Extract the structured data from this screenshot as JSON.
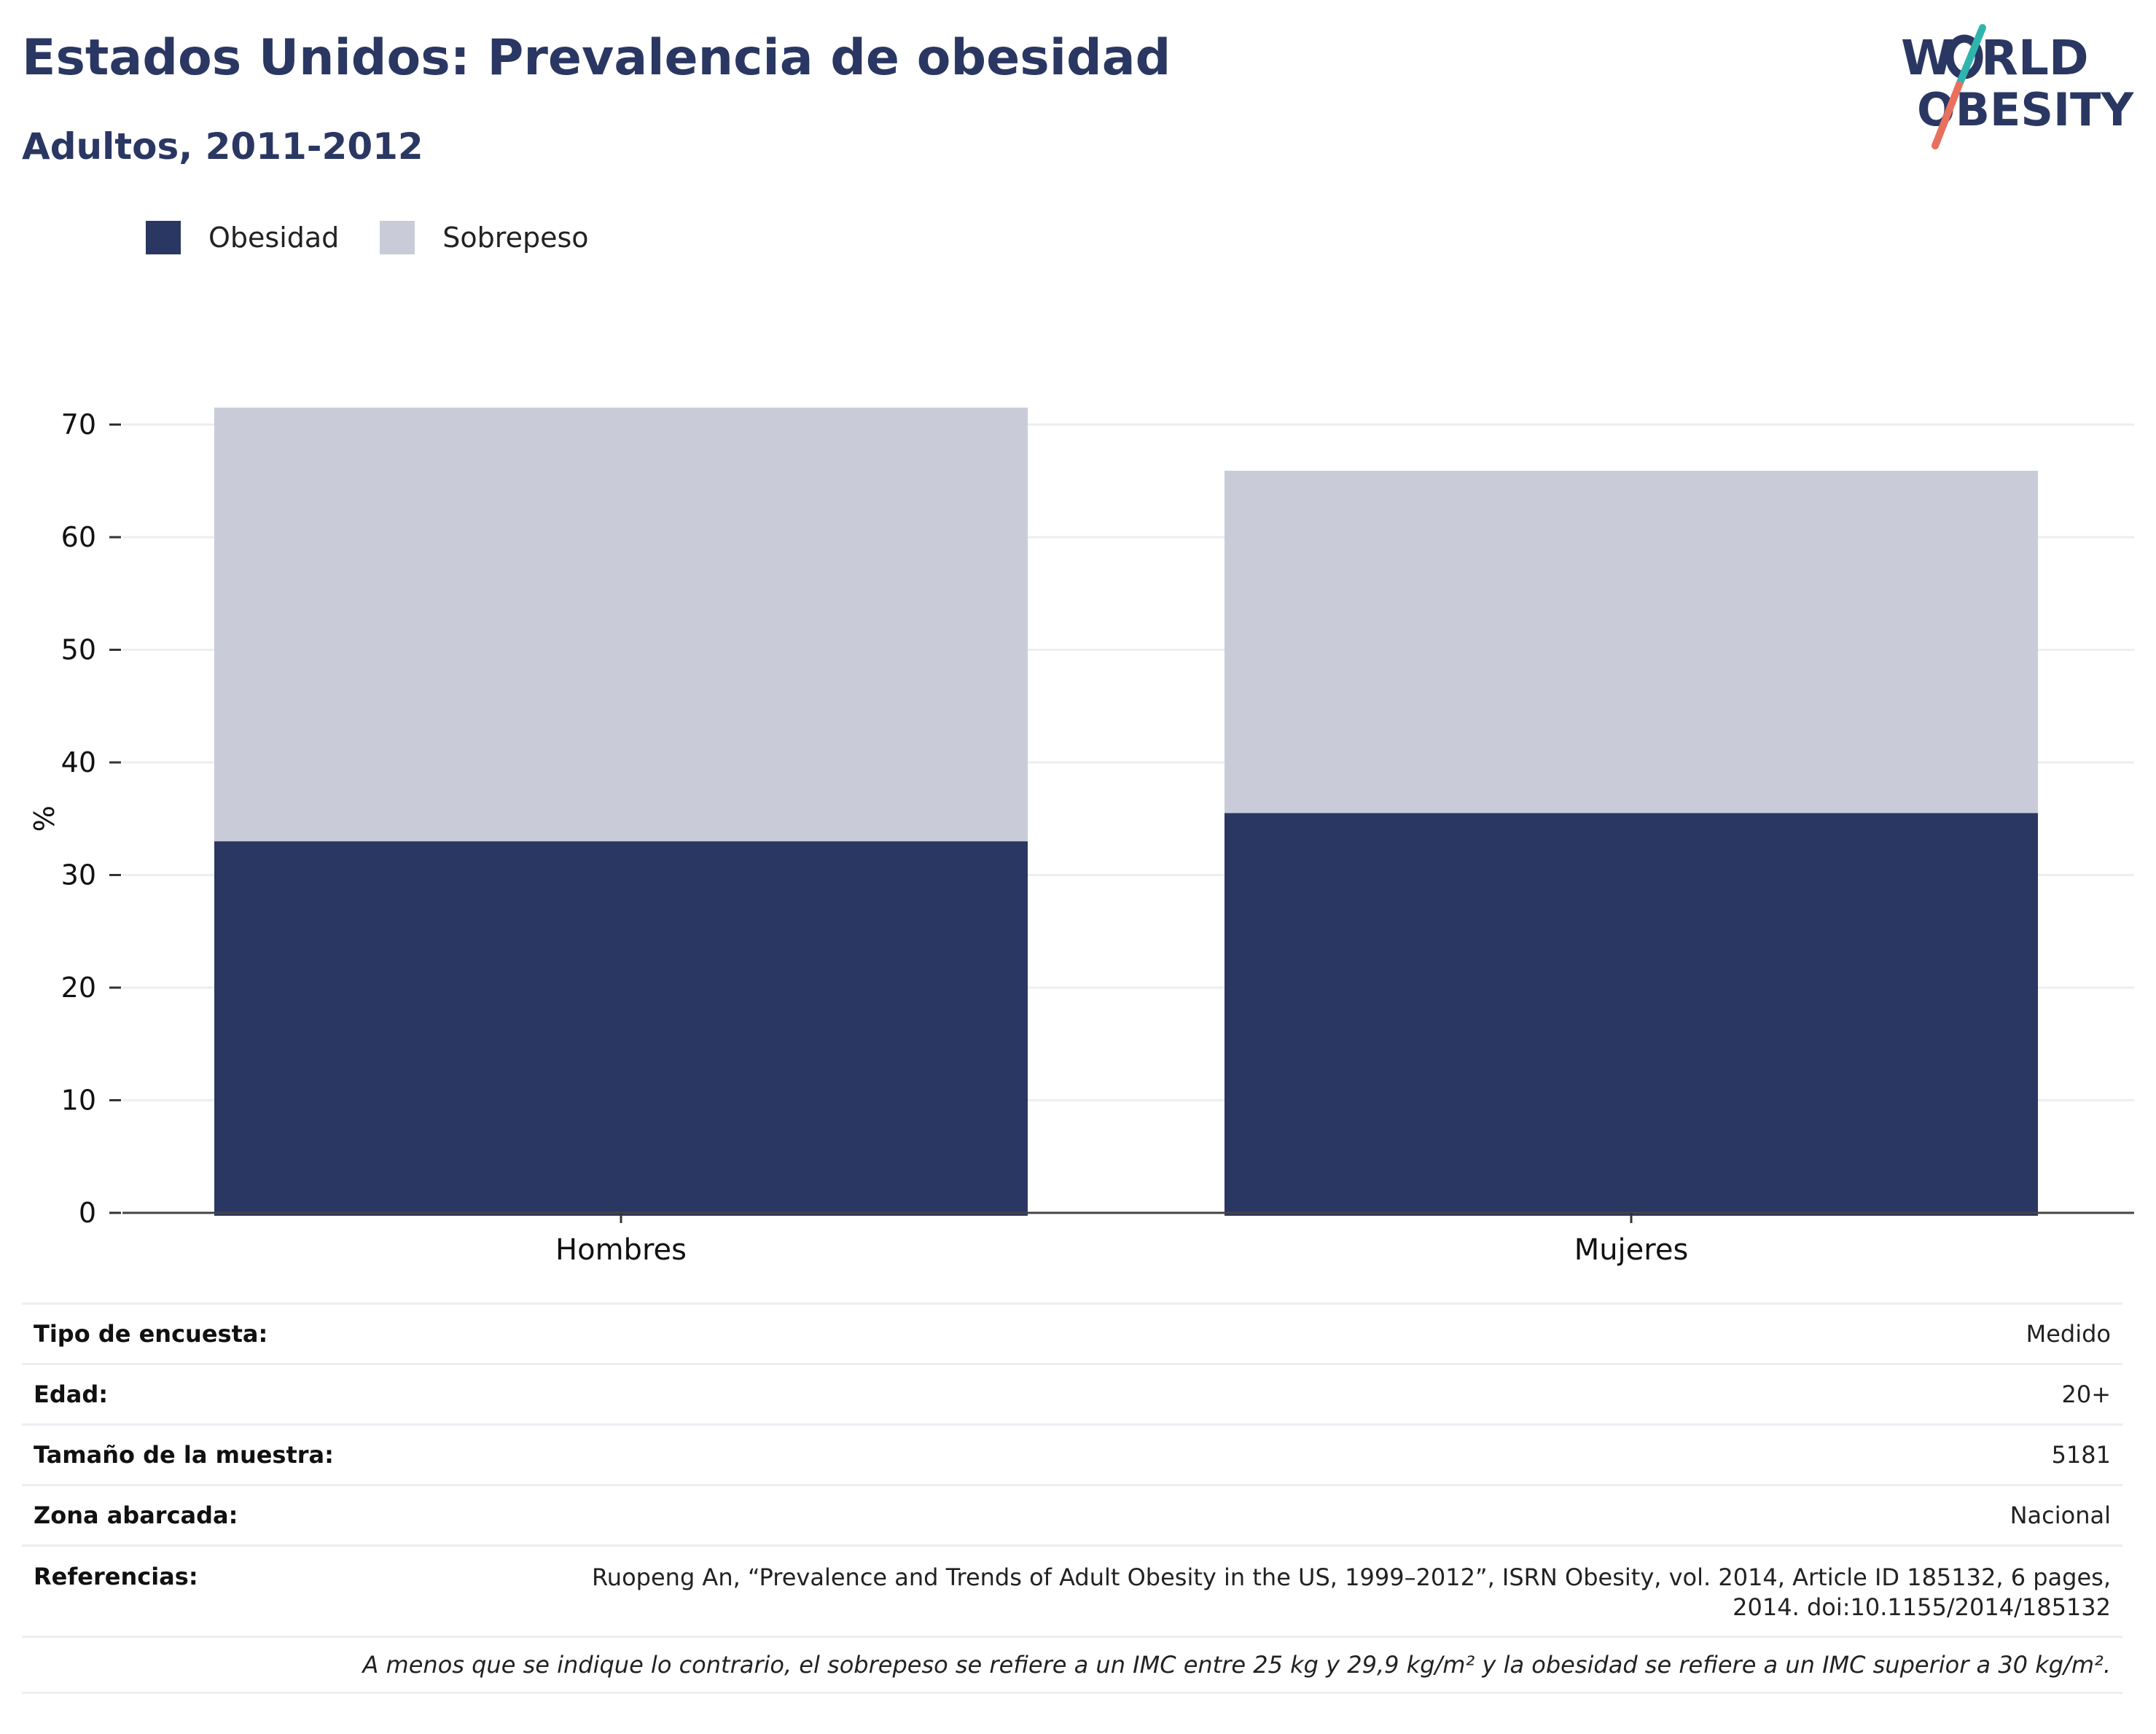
{
  "header": {
    "title": "Estados Unidos: Prevalencia de obesidad",
    "subtitle": "Adultos, 2011-2012",
    "logo_text": [
      "W",
      "RLD",
      "OBESITY"
    ]
  },
  "colors": {
    "obesidad": "#2a3762",
    "sobrepeso": "#c9ccd8",
    "title": "#2a3762",
    "logo_teal": "#2fb5ae",
    "logo_coral": "#e8705e"
  },
  "chart_data": {
    "type": "bar",
    "stacked": true,
    "categories": [
      "Hombres",
      "Mujeres"
    ],
    "series": [
      {
        "name": "Obesidad",
        "values": [
          33.0,
          35.5
        ]
      },
      {
        "name": "Sobrepeso",
        "values": [
          38.5,
          30.4
        ]
      }
    ],
    "title": "",
    "xlabel": "",
    "ylabel": "%",
    "ylim": [
      0,
      73
    ],
    "yticks": [
      0,
      10,
      20,
      30,
      40,
      50,
      60,
      70
    ],
    "grid": true,
    "legend_position": "top-left"
  },
  "info": {
    "rows": [
      {
        "label": "Tipo de encuesta:",
        "value": "Medido"
      },
      {
        "label": "Edad:",
        "value": "20+"
      },
      {
        "label": "Tamaño de la muestra:",
        "value": "5181"
      },
      {
        "label": "Zona abarcada:",
        "value": "Nacional"
      }
    ],
    "references_label": "Referencias:",
    "references_line1": "Ruopeng An, “Prevalence and Trends of Adult Obesity in the US, 1999–2012”, ISRN Obesity, vol. 2014, Article ID 185132, 6 pages,",
    "references_line2": "2014. doi:10.1155/2014/185132",
    "note": "A menos que se indique lo contrario, el sobrepeso se refiere a un IMC entre 25 kg y 29,9 kg/m² y la obesidad se refiere a un IMC superior a 30 kg/m²."
  }
}
